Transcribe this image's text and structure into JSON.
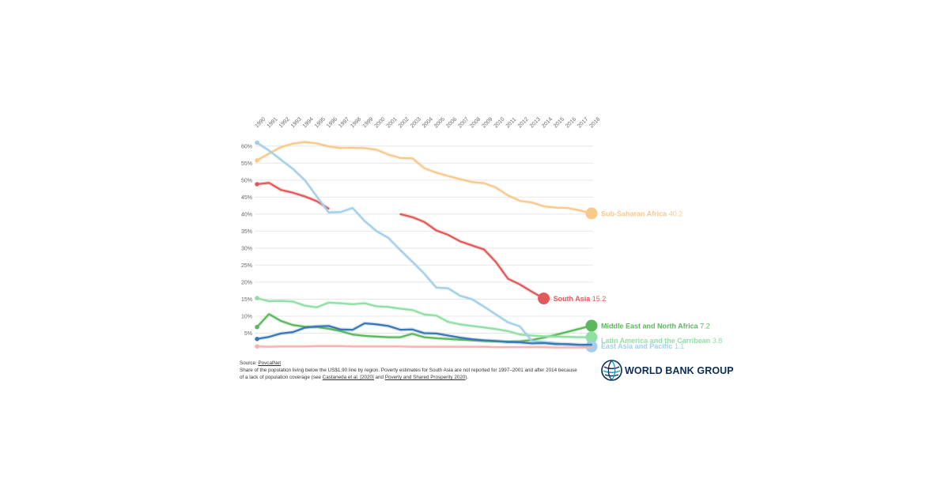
{
  "chart_data": {
    "type": "line",
    "x": [
      1990,
      1991,
      1992,
      1993,
      1994,
      1995,
      1996,
      1997,
      1998,
      1999,
      2000,
      2001,
      2002,
      2003,
      2004,
      2005,
      2006,
      2007,
      2008,
      2009,
      2010,
      2011,
      2012,
      2013,
      2014,
      2015,
      2016,
      2017,
      2018
    ],
    "x_tick_labels": [
      "1990",
      "1991",
      "1992",
      "1993",
      "1994",
      "1995",
      "1996",
      "1997",
      "1998",
      "1999",
      "2000",
      "2001",
      "2002",
      "2003",
      "2004",
      "2005",
      "2006",
      "2007",
      "2008",
      "2009",
      "2010",
      "2011",
      "2012",
      "2013",
      "2014",
      "2015",
      "2016",
      "2017",
      "2018"
    ],
    "y_tick_labels": [
      "5%",
      "10%",
      "15%",
      "20%",
      "25%",
      "30%",
      "35%",
      "40%",
      "45%",
      "50%",
      "55%",
      "60%"
    ],
    "y_ticks": [
      5,
      10,
      15,
      20,
      25,
      30,
      35,
      40,
      45,
      50,
      55,
      60
    ],
    "ylim": [
      0,
      62
    ],
    "grid": true,
    "series": [
      {
        "name": "Sub-Saharan Africa",
        "label_value": "40.2",
        "color": "#f9c98c",
        "values": [
          55.8,
          57.8,
          59.7,
          60.7,
          61.2,
          60.8,
          59.9,
          59.4,
          59.5,
          59.4,
          58.9,
          57.5,
          56.5,
          56.4,
          53.5,
          52.2,
          51.2,
          50.3,
          49.4,
          49.1,
          47.8,
          45.5,
          43.9,
          43.4,
          42.3,
          41.9,
          41.8,
          41.1,
          40.2
        ]
      },
      {
        "name": "South Asia",
        "label_value": "15.2",
        "color": "#e05a5a",
        "values": [
          48.8,
          49.2,
          47.1,
          46.3,
          45.2,
          43.8,
          41.6,
          null,
          null,
          null,
          null,
          null,
          40.0,
          39.1,
          37.7,
          35.2,
          33.9,
          32.0,
          30.8,
          29.6,
          25.9,
          21.0,
          19.3,
          17.2,
          15.2,
          null,
          null,
          null,
          null
        ]
      },
      {
        "name": "Middle East and North Africa",
        "label_value": "7.2",
        "color": "#5cb85c",
        "values": [
          6.8,
          10.6,
          8.6,
          7.4,
          6.9,
          6.8,
          6.3,
          5.6,
          4.6,
          4.2,
          4.0,
          3.8,
          3.8,
          4.8,
          3.8,
          3.5,
          3.3,
          3.1,
          2.9,
          2.7,
          2.6,
          2.5,
          2.6,
          3.0,
          3.7,
          4.5,
          5.4,
          6.3,
          7.2
        ]
      },
      {
        "name": "Latin America and the Carribean",
        "label_value": "3.8",
        "color": "#8fe0a2",
        "values": [
          15.3,
          14.4,
          14.5,
          14.3,
          13.1,
          12.6,
          14.0,
          13.8,
          13.5,
          13.8,
          12.9,
          12.7,
          12.2,
          11.8,
          10.5,
          10.2,
          8.3,
          7.6,
          7.1,
          6.7,
          6.2,
          5.6,
          4.6,
          4.3,
          4.1,
          4.0,
          3.9,
          3.8,
          3.8
        ]
      },
      {
        "name": "East Asia and Pacific",
        "label_value": "1.1",
        "color": "#a3cfe8",
        "values": [
          61.0,
          58.7,
          56.0,
          53.3,
          50.0,
          45.2,
          40.5,
          40.6,
          41.8,
          38.0,
          35.0,
          33.0,
          29.4,
          26.0,
          22.5,
          18.4,
          18.2,
          16.0,
          15.0,
          12.8,
          10.5,
          8.2,
          7.0,
          2.7,
          2.4,
          2.1,
          1.6,
          1.4,
          1.1
        ]
      },
      {
        "name": "",
        "label_value": "",
        "color": "#3a78b4",
        "values": [
          3.3,
          3.9,
          4.9,
          5.3,
          6.6,
          7.0,
          7.1,
          6.1,
          6.0,
          7.9,
          7.6,
          7.1,
          6.0,
          6.1,
          5.0,
          4.9,
          4.3,
          3.7,
          3.2,
          2.9,
          2.7,
          2.4,
          2.3,
          2.0,
          2.1,
          1.8,
          1.8,
          1.6,
          1.6
        ]
      },
      {
        "name": "",
        "label_value": "",
        "color": "#f5b3b3",
        "values": [
          1.1,
          1.0,
          1.1,
          1.1,
          1.1,
          1.2,
          1.2,
          1.2,
          1.1,
          1.1,
          1.1,
          1.1,
          1.1,
          1.0,
          1.0,
          1.0,
          1.0,
          1.0,
          1.0,
          1.0,
          0.9,
          0.9,
          0.9,
          0.9,
          0.9,
          0.8,
          0.8,
          0.8,
          0.8
        ]
      }
    ]
  },
  "footnote": {
    "source_prefix": "Source: ",
    "source_link": "PovcalNet",
    "line2": "Share of the population living below the US$1.90 line by region. Poverty estimates for South Asia are not reported for 1997–2001 and after 2014 because",
    "line3_prefix": "of a lack of population coverage (see ",
    "link1": "Castaneda et al. [2020]",
    "mid": " and ",
    "link2": "Poverty and Shared Prosperity 2020",
    "line3_suffix": ")."
  },
  "logo": {
    "text": "WORLD BANK GROUP"
  }
}
